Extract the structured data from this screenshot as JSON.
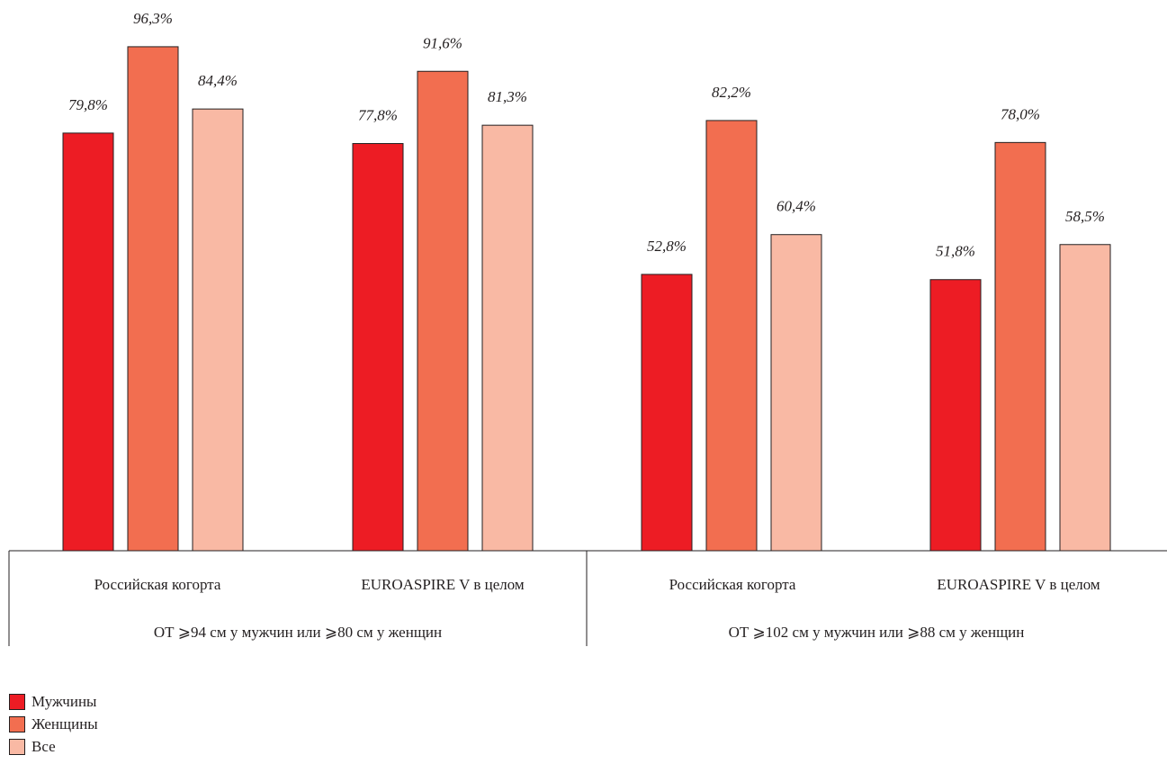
{
  "chart_data": {
    "type": "bar",
    "categories": [
      "Российская когорта",
      "EUROASPIRE V в целом",
      "Российская когорта",
      "EUROASPIRE V в целом"
    ],
    "category_groups": [
      {
        "label": "ОТ ⩾94 см у мужчин или ⩾80 см у женщин",
        "categories": [
          0,
          1
        ]
      },
      {
        "label": "ОТ ⩾102 см у мужчин или ⩾88 см у женщин",
        "categories": [
          2,
          3
        ]
      }
    ],
    "series": [
      {
        "name": "Мужчины",
        "color": "#ed1c24",
        "values": [
          79.8,
          77.8,
          52.8,
          51.8
        ],
        "labels": [
          "79,8%",
          "77,8%",
          "52,8%",
          "51,8%"
        ]
      },
      {
        "name": "Женщины",
        "color": "#f26e50",
        "values": [
          96.3,
          91.6,
          82.2,
          78.0
        ],
        "labels": [
          "96,3%",
          "91,6%",
          "82,2%",
          "78,0%"
        ]
      },
      {
        "name": "Все",
        "color": "#f9b9a4",
        "values": [
          84.4,
          81.3,
          60.4,
          58.5
        ],
        "labels": [
          "84,4%",
          "81,3%",
          "60,4%",
          "58,5%"
        ]
      }
    ],
    "ylim": [
      0,
      100
    ],
    "grid": false,
    "legend_position": "bottom-left"
  }
}
